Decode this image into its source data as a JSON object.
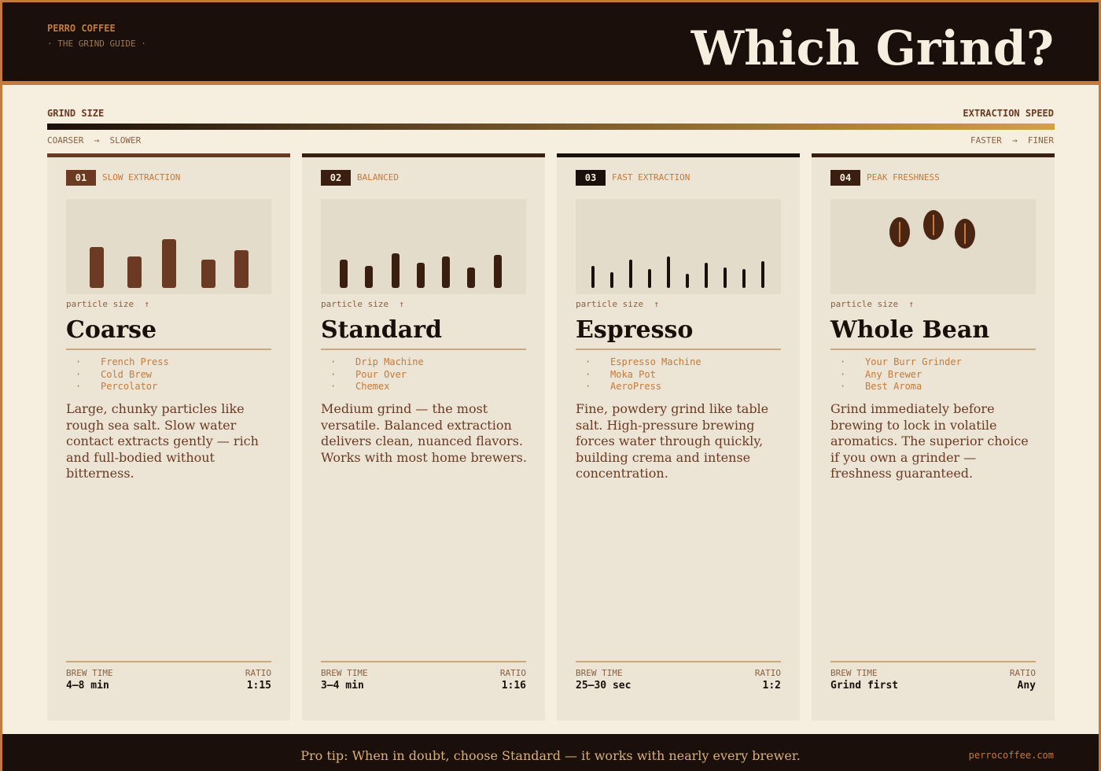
{
  "header": {
    "brand": "PERRO COFFEE",
    "subtitle": "· THE GRIND GUIDE ·",
    "title": "Which Grind?"
  },
  "scale": {
    "left_label": "GRIND SIZE",
    "right_label": "EXTRACTION SPEED",
    "left_caption": "COARSER  →  SLOWER",
    "right_caption": "FASTER  →  FINER"
  },
  "cards": [
    {
      "number": "01",
      "tag": "SLOW EXTRACTION",
      "axis_label": "particle size  ↑",
      "name": "Coarse",
      "uses": [
        "French Press",
        "Cold Brew",
        "Percolator"
      ],
      "description": "Large, chunky particles like rough sea salt. Slow water contact extracts gently — rich and full-bodied without bitterness.",
      "brew_time_label": "BREW TIME",
      "brew_time": "4–8 min",
      "ratio_label": "RATIO",
      "ratio": "1:15"
    },
    {
      "number": "02",
      "tag": "BALANCED",
      "axis_label": "particle size  ↑",
      "name": "Standard",
      "uses": [
        "Drip Machine",
        "Pour Over",
        "Chemex"
      ],
      "description": "Medium grind — the most versatile. Balanced extraction delivers clean, nuanced flavors. Works with most home brewers.",
      "brew_time_label": "BREW TIME",
      "brew_time": "3–4 min",
      "ratio_label": "RATIO",
      "ratio": "1:16"
    },
    {
      "number": "03",
      "tag": "FAST EXTRACTION",
      "axis_label": "particle size  ↑",
      "name": "Espresso",
      "uses": [
        "Espresso Machine",
        "Moka Pot",
        "AeroPress"
      ],
      "description": "Fine, powdery grind like table salt. High-pressure brewing forces water through quickly, building crema and intense concentration.",
      "brew_time_label": "BREW TIME",
      "brew_time": "25–30 sec",
      "ratio_label": "RATIO",
      "ratio": "1:2"
    },
    {
      "number": "04",
      "tag": "PEAK FRESHNESS",
      "axis_label": "particle size  ↑",
      "name": "Whole Bean",
      "uses": [
        "Your Burr Grinder",
        "Any Brewer",
        "Best Aroma"
      ],
      "description": "Grind immediately before brewing to lock in volatile aromatics. The superior choice if you own a grinder — freshness guaranteed.",
      "brew_time_label": "BREW TIME",
      "brew_time": "Grind first",
      "ratio_label": "RATIO",
      "ratio": "Any"
    }
  ],
  "footer": {
    "tip": "Pro tip: When in doubt, choose Standard — it works with nearly every brewer.",
    "url": "perrocoffee.com"
  }
}
